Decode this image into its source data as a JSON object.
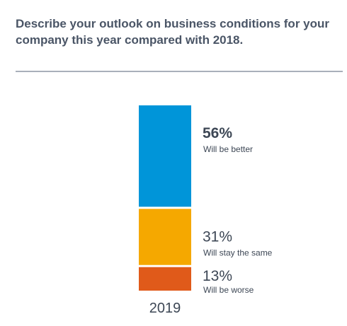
{
  "title": "Describe your outlook on business conditions for your company this year compared with 2018.",
  "chart_data": {
    "type": "bar",
    "stacked": true,
    "categories": [
      "2019"
    ],
    "series": [
      {
        "name": "Will be better",
        "value_label": "56%",
        "values": [
          56
        ],
        "color": "#0095d9",
        "emphasis": true
      },
      {
        "name": "Will stay the same",
        "value_label": "31%",
        "values": [
          31
        ],
        "color": "#f5a800",
        "emphasis": false
      },
      {
        "name": "Will be worse",
        "value_label": "13%",
        "values": [
          13
        ],
        "color": "#e05a1a",
        "emphasis": false
      }
    ],
    "ylim": [
      0,
      100
    ],
    "grid": false,
    "legend": "inline-right"
  }
}
